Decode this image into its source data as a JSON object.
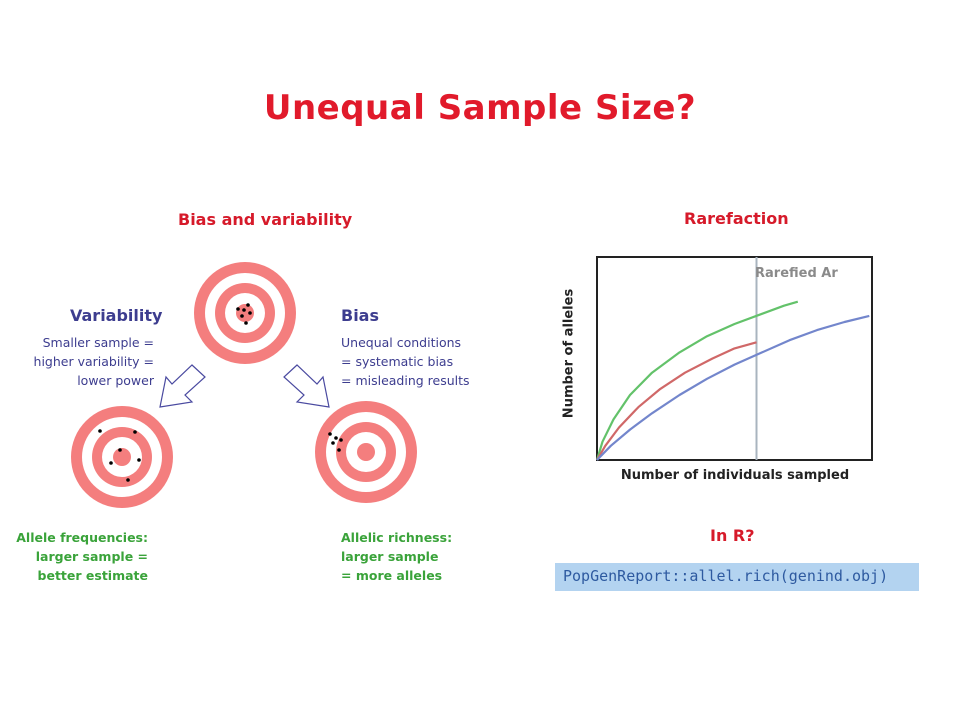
{
  "slide": {
    "title": "Unequal Sample Size?"
  },
  "left_panel": {
    "heading": "Bias and variability",
    "variability": {
      "label": "Variability",
      "lines": [
        "Smaller sample =",
        "higher variability =",
        "lower power"
      ]
    },
    "bias": {
      "label": "Bias",
      "lines": [
        "Unequal conditions",
        "= systematic bias",
        "= misleading results"
      ]
    },
    "allele_freq": {
      "lines": [
        "Allele frequencies:",
        "larger sample =",
        "better estimate"
      ]
    },
    "allelic_richness": {
      "lines": [
        "Allelic richness:",
        "larger sample",
        "= more alleles"
      ]
    }
  },
  "right_panel": {
    "heading": "Rarefaction",
    "in_r_label": "In R?",
    "code": "PopGenReport::allel.rich(genind.obj)"
  },
  "colors": {
    "title_red": "#e11a2b",
    "navy": "#3d3d8f",
    "green": "#3aa33a",
    "target_red": "#f47e7e",
    "code_bg": "#b3d3f0"
  },
  "chart_data": {
    "type": "line",
    "xlabel": "Number of individuals sampled",
    "ylabel": "Number of alleles",
    "annotation": "Rarefied Ar",
    "xlim": [
      0,
      1
    ],
    "ylim": [
      0,
      1
    ],
    "rarefied_x": 0.58,
    "series": [
      {
        "color": "#63c26a",
        "x": [
          0,
          0.02,
          0.06,
          0.12,
          0.2,
          0.3,
          0.4,
          0.5,
          0.6,
          0.68,
          0.73
        ],
        "y": [
          0,
          0.09,
          0.2,
          0.32,
          0.43,
          0.53,
          0.61,
          0.67,
          0.72,
          0.76,
          0.78
        ]
      },
      {
        "color": "#d06868",
        "x": [
          0,
          0.03,
          0.08,
          0.15,
          0.23,
          0.32,
          0.42,
          0.5,
          0.58
        ],
        "y": [
          0,
          0.07,
          0.16,
          0.26,
          0.35,
          0.43,
          0.5,
          0.55,
          0.58
        ]
      },
      {
        "color": "#7386cc",
        "x": [
          0,
          0.05,
          0.12,
          0.2,
          0.3,
          0.4,
          0.5,
          0.6,
          0.7,
          0.8,
          0.9,
          0.99
        ],
        "y": [
          0,
          0.07,
          0.15,
          0.23,
          0.32,
          0.4,
          0.47,
          0.53,
          0.59,
          0.64,
          0.68,
          0.71
        ]
      }
    ]
  }
}
